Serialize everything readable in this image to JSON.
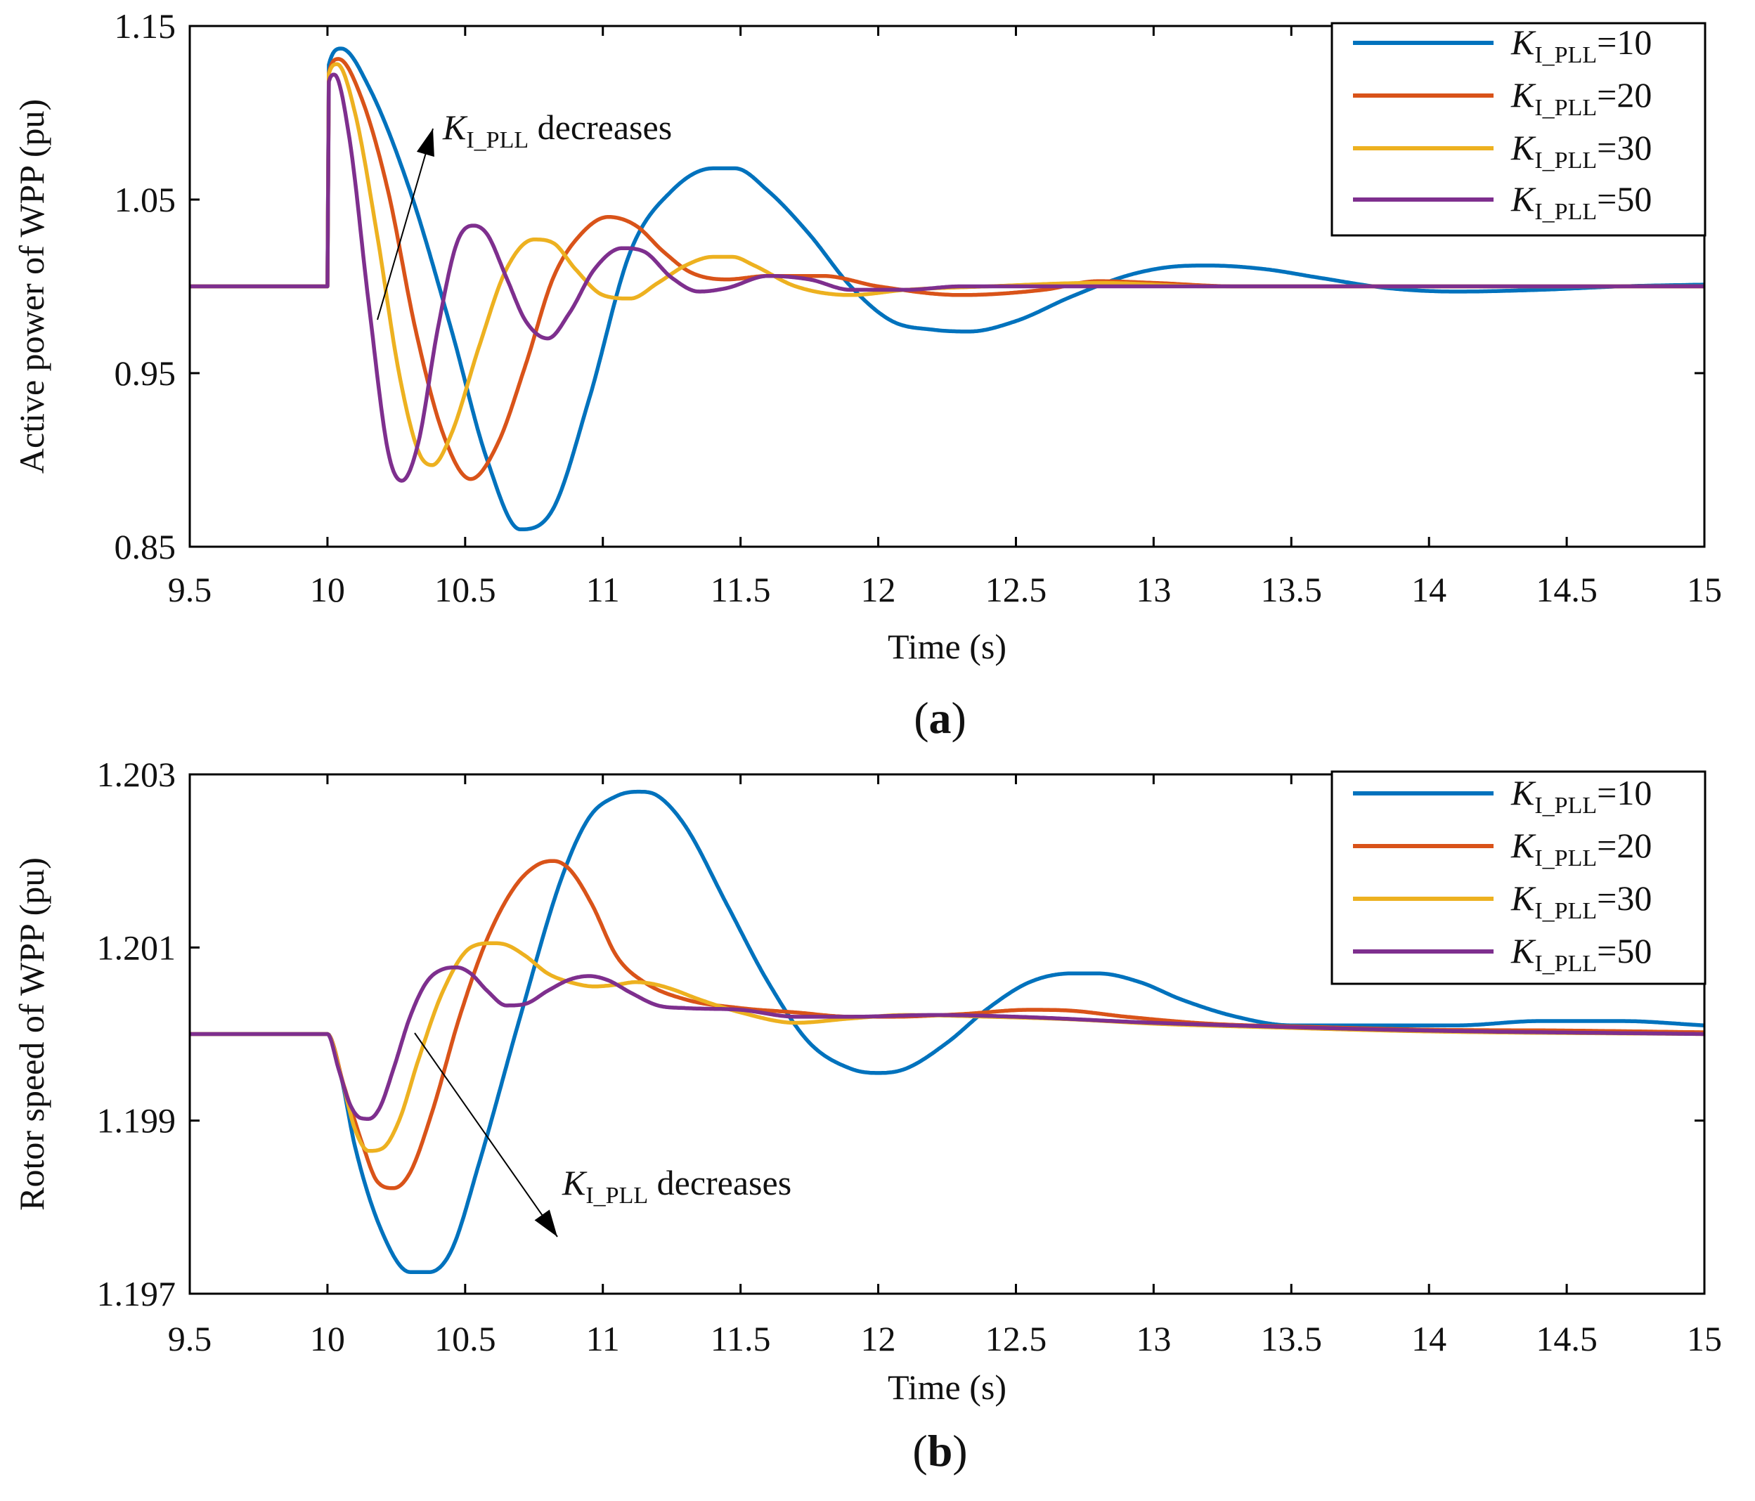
{
  "colors": {
    "KI_PLL=10": "#0072BD",
    "KI_PLL=20": "#D95319",
    "KI_PLL=30": "#EDB120",
    "KI_PLL=50": "#7E2F8E"
  },
  "chart_data": [
    {
      "type": "line",
      "panel_label": "a",
      "title": "",
      "xlabel": "Time (s)",
      "ylabel": "Active power of WPP (pu)",
      "xlim": [
        9.5,
        15
      ],
      "ylim": [
        0.85,
        1.15
      ],
      "xticks": [
        "9.5",
        "10",
        "10.5",
        "11",
        "11.5",
        "12",
        "12.5",
        "13",
        "13.5",
        "14",
        "14.5",
        "15"
      ],
      "yticks": [
        "0.85",
        "0.95",
        "1.05",
        "1.15"
      ],
      "annotation": {
        "italic": "K",
        "sub": "I_PLL",
        "rest": " decreases"
      },
      "legend_position": "top-right",
      "series": [
        {
          "name": "KI_PLL=10",
          "label_k": "K",
          "label_sub": "I_PLL",
          "label_val": "=10",
          "x": [
            9.5,
            10.0,
            10.001,
            10.05,
            10.15,
            10.3,
            10.45,
            10.58,
            10.7,
            10.82,
            10.95,
            11.1,
            11.25,
            11.4,
            11.48,
            11.6,
            11.75,
            11.9,
            12.05,
            12.2,
            12.33,
            12.5,
            12.7,
            12.9,
            13.05,
            13.2,
            13.4,
            13.6,
            13.85,
            14.1,
            14.4,
            14.7,
            15.0
          ],
          "y": [
            1.0,
            1.0,
            1.125,
            1.137,
            1.115,
            1.055,
            0.975,
            0.9,
            0.86,
            0.872,
            0.935,
            1.02,
            1.055,
            1.068,
            1.068,
            1.055,
            1.03,
            1.0,
            0.98,
            0.975,
            0.974,
            0.98,
            0.994,
            1.006,
            1.011,
            1.012,
            1.01,
            1.005,
            0.999,
            0.997,
            0.998,
            1.0,
            1.001
          ]
        },
        {
          "name": "KI_PLL=20",
          "label_k": "K",
          "label_sub": "I_PLL",
          "label_val": "=20",
          "x": [
            9.5,
            10.0,
            10.001,
            10.04,
            10.12,
            10.22,
            10.32,
            10.42,
            10.52,
            10.62,
            10.72,
            10.82,
            10.92,
            11.02,
            11.12,
            11.22,
            11.32,
            11.45,
            11.6,
            11.8,
            12.0,
            12.3,
            12.6,
            12.8,
            13.0,
            13.3,
            13.6,
            14.0,
            14.5,
            15.0
          ],
          "y": [
            1.0,
            1.0,
            1.12,
            1.131,
            1.11,
            1.055,
            0.975,
            0.915,
            0.889,
            0.91,
            0.955,
            1.005,
            1.03,
            1.04,
            1.035,
            1.02,
            1.008,
            1.004,
            1.006,
            1.006,
            1.0,
            0.995,
            0.998,
            1.003,
            1.002,
            1.0,
            1.0,
            1.0,
            1.0,
            1.0
          ]
        },
        {
          "name": "KI_PLL=30",
          "label_k": "K",
          "label_sub": "I_PLL",
          "label_val": "=30",
          "x": [
            9.5,
            10.0,
            10.001,
            10.035,
            10.1,
            10.18,
            10.26,
            10.33,
            10.38,
            10.45,
            10.55,
            10.65,
            10.75,
            10.82,
            10.9,
            11.0,
            11.1,
            11.2,
            11.3,
            11.4,
            11.47,
            11.55,
            11.7,
            11.9,
            12.1,
            12.4,
            12.8,
            13.2,
            14.0,
            15.0
          ],
          "y": [
            1.0,
            1.0,
            1.12,
            1.128,
            1.1,
            1.03,
            0.95,
            0.905,
            0.897,
            0.915,
            0.965,
            1.01,
            1.027,
            1.025,
            1.01,
            0.995,
            0.993,
            1.002,
            1.012,
            1.017,
            1.017,
            1.012,
            1.0,
            0.995,
            0.998,
            1.0,
            1.002,
            1.0,
            1.0,
            1.0
          ]
        },
        {
          "name": "KI_PLL=50",
          "label_k": "K",
          "label_sub": "I_PLL",
          "label_val": "=50",
          "x": [
            9.5,
            10.0,
            10.001,
            10.025,
            10.08,
            10.15,
            10.22,
            10.27,
            10.33,
            10.4,
            10.47,
            10.53,
            10.58,
            10.65,
            10.72,
            10.8,
            10.88,
            10.97,
            11.07,
            11.15,
            11.25,
            11.35,
            11.45,
            11.6,
            11.75,
            11.9,
            12.1,
            12.3,
            12.6,
            12.9,
            13.4,
            14.0,
            15.0
          ],
          "y": [
            1.0,
            1.0,
            1.115,
            1.122,
            1.085,
            0.99,
            0.905,
            0.888,
            0.91,
            0.975,
            1.025,
            1.035,
            1.03,
            1.005,
            0.98,
            0.97,
            0.985,
            1.01,
            1.022,
            1.02,
            1.005,
            0.997,
            0.999,
            1.006,
            1.004,
            0.998,
            0.998,
            1.0,
            1.0,
            1.0,
            1.0,
            1.0,
            1.0
          ]
        }
      ]
    },
    {
      "type": "line",
      "panel_label": "b",
      "title": "",
      "xlabel": "Time (s)",
      "ylabel": "Rotor speed of WPP (pu)",
      "xlim": [
        9.5,
        15
      ],
      "ylim": [
        1.197,
        1.203
      ],
      "xticks": [
        "9.5",
        "10",
        "10.5",
        "11",
        "11.5",
        "12",
        "12.5",
        "13",
        "13.5",
        "14",
        "14.5",
        "15"
      ],
      "yticks": [
        "1.197",
        "1.199",
        "1.201",
        "1.203"
      ],
      "annotation": {
        "italic": "K",
        "sub": "I_PLL",
        "rest": " decreases"
      },
      "legend_position": "top-right",
      "series": [
        {
          "name": "KI_PLL=10",
          "label_k": "K",
          "label_sub": "I_PLL",
          "label_val": "=10",
          "x": [
            9.5,
            10.0,
            10.05,
            10.1,
            10.2,
            10.3,
            10.37,
            10.45,
            10.55,
            10.7,
            10.85,
            10.95,
            11.05,
            11.13,
            11.2,
            11.3,
            11.45,
            11.6,
            11.75,
            11.9,
            12.0,
            12.1,
            12.25,
            12.4,
            12.55,
            12.7,
            12.8,
            12.95,
            13.1,
            13.3,
            13.5,
            13.8,
            14.1,
            14.4,
            14.7,
            15.0
          ],
          "y": [
            1.2,
            1.2,
            1.1995,
            1.1987,
            1.1977,
            1.19725,
            1.19725,
            1.1975,
            1.1985,
            1.2002,
            1.2018,
            1.2025,
            1.20275,
            1.2028,
            1.20275,
            1.2024,
            1.2015,
            1.2006,
            1.1999,
            1.1996,
            1.19955,
            1.1996,
            1.1999,
            1.2003,
            1.2006,
            1.2007,
            1.2007,
            1.2006,
            1.2004,
            1.2002,
            1.2001,
            1.2001,
            1.2001,
            1.20015,
            1.20015,
            1.2001
          ]
        },
        {
          "name": "KI_PLL=20",
          "label_k": "K",
          "label_sub": "I_PLL",
          "label_val": "=20",
          "x": [
            9.5,
            10.0,
            10.06,
            10.13,
            10.18,
            10.24,
            10.3,
            10.38,
            10.48,
            10.58,
            10.68,
            10.76,
            10.82,
            10.88,
            10.96,
            11.05,
            11.15,
            11.3,
            11.5,
            11.7,
            11.9,
            12.05,
            12.3,
            12.55,
            12.7,
            12.9,
            13.2,
            13.6,
            14.0,
            14.5,
            15.0
          ],
          "y": [
            1.2,
            1.2,
            1.1994,
            1.1987,
            1.1983,
            1.19822,
            1.1984,
            1.1991,
            1.2002,
            1.2011,
            1.2017,
            1.20195,
            1.202,
            1.2019,
            1.2015,
            1.2009,
            1.2006,
            1.2004,
            1.2003,
            1.20025,
            1.2002,
            1.2002,
            1.20023,
            1.20028,
            1.20027,
            1.2002,
            1.20012,
            1.20008,
            1.20005,
            1.20004,
            1.20002
          ]
        },
        {
          "name": "KI_PLL=30",
          "label_k": "K",
          "label_sub": "I_PLL",
          "label_val": "=30",
          "x": [
            9.5,
            10.0,
            10.05,
            10.1,
            10.15,
            10.2,
            10.26,
            10.33,
            10.42,
            10.52,
            10.6,
            10.65,
            10.72,
            10.8,
            10.88,
            10.97,
            11.05,
            11.12,
            11.18,
            11.25,
            11.35,
            11.5,
            11.7,
            11.9,
            12.1,
            12.4,
            12.7,
            13.0,
            13.4,
            14.0,
            15.0
          ],
          "y": [
            1.2,
            1.2,
            1.1995,
            1.1989,
            1.19865,
            1.19868,
            1.199,
            1.1997,
            1.2005,
            1.201,
            1.20105,
            1.20103,
            1.2009,
            1.2007,
            1.2006,
            1.20055,
            1.20057,
            1.2006,
            1.20058,
            1.20052,
            1.2004,
            1.20025,
            1.20013,
            1.20018,
            1.20022,
            1.2002,
            1.20017,
            1.20012,
            1.20008,
            1.20003,
            1.2
          ]
        },
        {
          "name": "KI_PLL=50",
          "label_k": "K",
          "label_sub": "I_PLL",
          "label_val": "=50",
          "x": [
            9.5,
            10.0,
            10.04,
            10.08,
            10.12,
            10.15,
            10.19,
            10.24,
            10.3,
            10.36,
            10.42,
            10.47,
            10.52,
            10.58,
            10.65,
            10.72,
            10.8,
            10.88,
            10.95,
            11.02,
            11.1,
            11.2,
            11.3,
            11.5,
            11.7,
            11.9,
            12.2,
            12.5,
            13.0,
            13.5,
            14.0,
            15.0
          ],
          "y": [
            1.2,
            1.2,
            1.1996,
            1.1992,
            1.19903,
            1.19902,
            1.19915,
            1.1996,
            1.2002,
            1.2006,
            1.20075,
            1.20077,
            1.2007,
            1.2005,
            1.20033,
            1.20035,
            1.2005,
            1.20063,
            1.20067,
            1.20062,
            1.20048,
            1.20033,
            1.2003,
            1.20028,
            1.2002,
            1.2002,
            1.20022,
            1.2002,
            1.20013,
            1.20008,
            1.20004,
            1.2
          ]
        }
      ]
    }
  ]
}
